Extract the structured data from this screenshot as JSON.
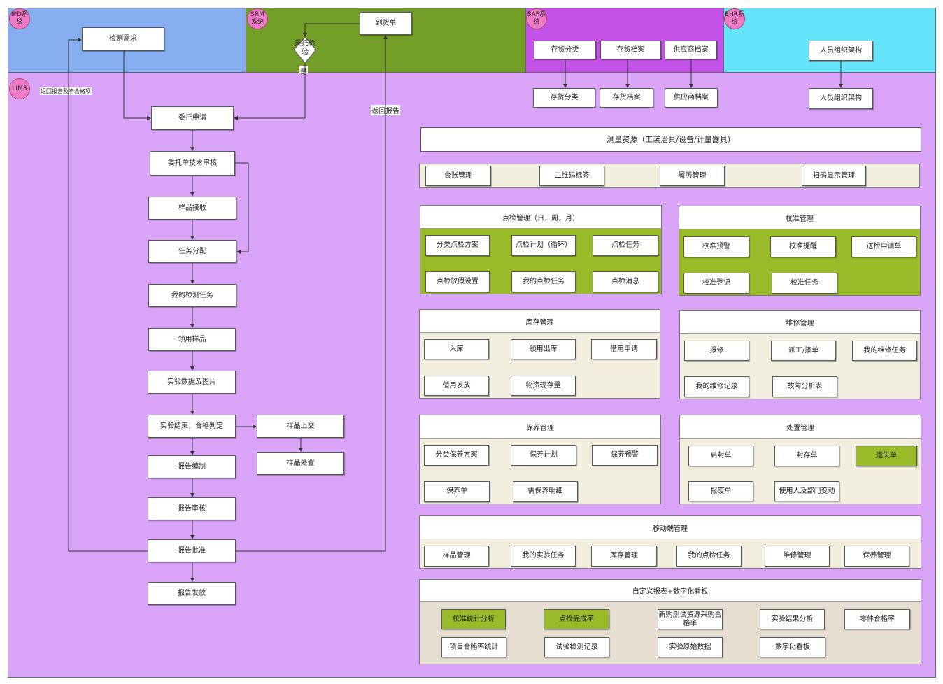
{
  "lanes": {
    "ipd": "IPD系统",
    "srm": "SRM系统",
    "sap": "SAP系统",
    "ehr": "EHR系统",
    "lims": "LIMS"
  },
  "colors": {
    "ipd": "#86aef0",
    "srm": "#739e28",
    "sap": "#c452e8",
    "ehr": "#66e4fa",
    "lims": "#d9a3f8",
    "badge": "#f07ac8",
    "green_item": "#99bb2a",
    "cream": "#f3efdf",
    "beige": "#e6ded0"
  },
  "flow": {
    "need": "检测需求",
    "arrival": "到货单",
    "decision": "委托检验",
    "yes": "是",
    "apply": "委托申请",
    "tech_review": "委托单技术审核",
    "receive": "样品接收",
    "assign": "任务分配",
    "my_tasks": "我的检测任务",
    "take_sample": "领用样品",
    "data_images": "实验数据及图片",
    "judge": "实验结束，合格判定",
    "submit": "样品上交",
    "dispose": "样品处置",
    "compile": "报告编制",
    "review": "报告审核",
    "approve": "报告批准",
    "issue": "报告发放",
    "return_ipd": "返回报告及不合格项",
    "return_srm": "返回报告"
  },
  "sap": {
    "top": [
      "存货分类",
      "存货档案",
      "供应商档案"
    ],
    "bottom": [
      "存货分类",
      "存货档案",
      "供应商档案"
    ]
  },
  "ehr": {
    "top": "人员组织架构",
    "bottom": "人员组织架构"
  },
  "measure": {
    "title": "测量资源（工装治具/设备/计量器具）",
    "items": [
      "台账管理",
      "二维码标签",
      "履历管理",
      "扫码显示管理"
    ]
  },
  "panels": [
    {
      "title": "点检管理（日，周，月）",
      "items": [
        "分类点检方案",
        "点检计划（循环）",
        "点检任务",
        "点检放假设置",
        "我的点检任务",
        "点检消息"
      ]
    },
    {
      "title": "校准管理",
      "items": [
        "校准预警",
        "校准提醒",
        "送检申请单",
        "校准登记",
        "校准任务"
      ]
    },
    {
      "title": "库存管理",
      "items": [
        "入库",
        "领用出库",
        "借用申请",
        "借用发放",
        "物资现存量"
      ]
    },
    {
      "title": "维修管理",
      "items": [
        "报修",
        "派工/接单",
        "我的维修任务",
        "我的维修记录",
        "故障分析表"
      ]
    },
    {
      "title": "保养管理",
      "items": [
        "分类保养方案",
        "保养计划",
        "保养预警",
        "保养单",
        "需保养明细"
      ]
    },
    {
      "title": "处置管理",
      "items": [
        "启封单",
        "封存单",
        "遗失单",
        "报废单",
        "使用人及部门变动"
      ]
    },
    {
      "title": "移动端管理",
      "items": [
        "样品管理",
        "我的实验任务",
        "库存管理",
        "我的点检任务",
        "维修管理",
        "保养管理"
      ]
    },
    {
      "title": "自定义报表+数字化看板",
      "items": [
        "校准统计分析",
        "点检完成率",
        "新购测试资源采购合格率",
        "实验结果分析",
        "零件合格率",
        "项目合格率统计",
        "试验检测记录",
        "实验原始数据",
        "数字化看板"
      ]
    }
  ]
}
